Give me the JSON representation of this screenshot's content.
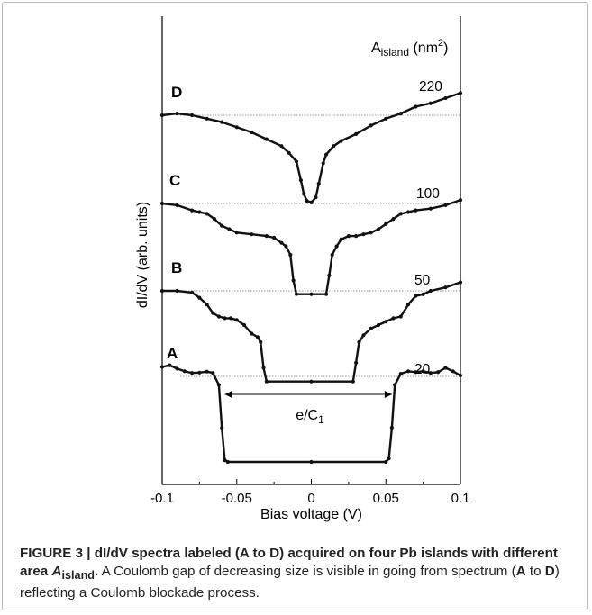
{
  "chart_data": {
    "type": "line",
    "xlabel": "Bias voltage (V)",
    "ylabel": "dI/dV (arb. units)",
    "xlim": [
      -0.1,
      0.1
    ],
    "xticks": [
      "-0.1",
      "-0.05",
      "0",
      "0.05",
      "0.1"
    ],
    "legend_header": "A",
    "legend_header_sub": "island",
    "legend_header_unit": "(nm",
    "legend_header_sup": "2",
    "legend_header_close": ")",
    "annotation": {
      "text": "e/C",
      "sub": "1",
      "x_from": -0.058,
      "x_to": 0.054
    },
    "grid": false,
    "series": [
      {
        "name": "A",
        "area": "20",
        "gap_half_width": 0.06,
        "points": [
          [
            -0.1,
            0.55
          ],
          [
            -0.095,
            0.65
          ],
          [
            -0.09,
            0.45
          ],
          [
            -0.085,
            0.3
          ],
          [
            -0.08,
            0.2
          ],
          [
            -0.075,
            0.22
          ],
          [
            -0.07,
            0.28
          ],
          [
            -0.066,
            0.2
          ],
          [
            -0.062,
            -0.5
          ],
          [
            -0.06,
            -3.0
          ],
          [
            -0.058,
            -4.9
          ],
          [
            -0.056,
            -5.0
          ],
          [
            0.0,
            -5.0
          ],
          [
            0.05,
            -5.0
          ],
          [
            0.052,
            -4.8
          ],
          [
            0.054,
            -3.0
          ],
          [
            0.056,
            -0.5
          ],
          [
            0.06,
            0.15
          ],
          [
            0.065,
            0.3
          ],
          [
            0.07,
            0.25
          ],
          [
            0.075,
            0.3
          ],
          [
            0.08,
            0.2
          ],
          [
            0.085,
            0.25
          ],
          [
            0.09,
            0.5
          ],
          [
            0.095,
            0.3
          ],
          [
            0.1,
            0.05
          ]
        ]
      },
      {
        "name": "B",
        "area": "50",
        "gap_half_width": 0.032,
        "points": [
          [
            -0.1,
            0.0
          ],
          [
            -0.09,
            0.0
          ],
          [
            -0.08,
            -0.1
          ],
          [
            -0.075,
            -0.4
          ],
          [
            -0.07,
            -0.8
          ],
          [
            -0.066,
            -1.3
          ],
          [
            -0.062,
            -1.5
          ],
          [
            -0.058,
            -1.6
          ],
          [
            -0.054,
            -1.6
          ],
          [
            -0.05,
            -1.7
          ],
          [
            -0.045,
            -2.0
          ],
          [
            -0.04,
            -2.5
          ],
          [
            -0.036,
            -2.7
          ],
          [
            -0.034,
            -3.0
          ],
          [
            -0.032,
            -4.5
          ],
          [
            -0.03,
            -5.3
          ],
          [
            0.0,
            -5.3
          ],
          [
            0.028,
            -5.3
          ],
          [
            0.03,
            -4.2
          ],
          [
            0.032,
            -3.0
          ],
          [
            0.035,
            -2.6
          ],
          [
            0.04,
            -2.2
          ],
          [
            0.045,
            -2.0
          ],
          [
            0.05,
            -1.8
          ],
          [
            0.055,
            -1.6
          ],
          [
            0.06,
            -1.5
          ],
          [
            0.065,
            -0.8
          ],
          [
            0.07,
            -0.3
          ],
          [
            0.075,
            -0.2
          ],
          [
            0.08,
            0.0
          ],
          [
            0.09,
            0.2
          ],
          [
            0.1,
            0.5
          ]
        ]
      },
      {
        "name": "C",
        "area": "100",
        "gap_half_width": 0.014,
        "points": [
          [
            -0.1,
            0.0
          ],
          [
            -0.09,
            -0.1
          ],
          [
            -0.08,
            -0.4
          ],
          [
            -0.075,
            -0.5
          ],
          [
            -0.07,
            -0.6
          ],
          [
            -0.065,
            -0.9
          ],
          [
            -0.06,
            -1.3
          ],
          [
            -0.055,
            -1.5
          ],
          [
            -0.05,
            -1.7
          ],
          [
            -0.04,
            -1.8
          ],
          [
            -0.03,
            -1.9
          ],
          [
            -0.025,
            -2.0
          ],
          [
            -0.02,
            -2.3
          ],
          [
            -0.017,
            -2.5
          ],
          [
            -0.014,
            -3.0
          ],
          [
            -0.012,
            -4.5
          ],
          [
            -0.01,
            -5.3
          ],
          [
            0.0,
            -5.3
          ],
          [
            0.01,
            -5.3
          ],
          [
            0.012,
            -4.2
          ],
          [
            0.014,
            -3.0
          ],
          [
            0.017,
            -2.5
          ],
          [
            0.02,
            -2.1
          ],
          [
            0.025,
            -1.9
          ],
          [
            0.03,
            -1.9
          ],
          [
            0.035,
            -1.8
          ],
          [
            0.04,
            -1.7
          ],
          [
            0.045,
            -1.5
          ],
          [
            0.05,
            -1.2
          ],
          [
            0.055,
            -0.9
          ],
          [
            0.06,
            -0.6
          ],
          [
            0.065,
            -0.5
          ],
          [
            0.07,
            -0.4
          ],
          [
            0.08,
            -0.3
          ],
          [
            0.09,
            -0.1
          ],
          [
            0.1,
            0.2
          ]
        ]
      },
      {
        "name": "D",
        "area": "220",
        "gap_half_width": 0.005,
        "points": [
          [
            -0.1,
            0.0
          ],
          [
            -0.09,
            0.1
          ],
          [
            -0.08,
            0.0
          ],
          [
            -0.07,
            -0.2
          ],
          [
            -0.06,
            -0.4
          ],
          [
            -0.05,
            -0.7
          ],
          [
            -0.04,
            -1.0
          ],
          [
            -0.03,
            -1.4
          ],
          [
            -0.02,
            -1.8
          ],
          [
            -0.015,
            -2.2
          ],
          [
            -0.01,
            -2.7
          ],
          [
            -0.007,
            -3.8
          ],
          [
            -0.005,
            -4.6
          ],
          [
            -0.003,
            -5.0
          ],
          [
            0.0,
            -5.1
          ],
          [
            0.003,
            -4.8
          ],
          [
            0.005,
            -4.0
          ],
          [
            0.008,
            -2.8
          ],
          [
            0.01,
            -2.3
          ],
          [
            0.015,
            -1.8
          ],
          [
            0.02,
            -1.5
          ],
          [
            0.03,
            -1.1
          ],
          [
            0.04,
            -0.6
          ],
          [
            0.05,
            -0.2
          ],
          [
            0.06,
            0.1
          ],
          [
            0.07,
            0.5
          ],
          [
            0.08,
            0.7
          ],
          [
            0.09,
            1.0
          ],
          [
            0.1,
            1.3
          ]
        ]
      }
    ]
  },
  "caption": {
    "head": "FIGURE 3 | dI/dV spectra labeled (A to D) acquired on four Pb islands with different area ",
    "head_var": "A",
    "head_var_sub": "island",
    "head_end": ".",
    "body_1": " A Coulomb gap of decreasing size is visible in going from spectrum (",
    "body_a": "A",
    "body_to": " to ",
    "body_d": "D",
    "body_2": ") reflecting a Coulomb blockade process."
  },
  "colors": {
    "curve": "#111111",
    "baseline": "#9a9a9a",
    "axis": "#000000"
  }
}
